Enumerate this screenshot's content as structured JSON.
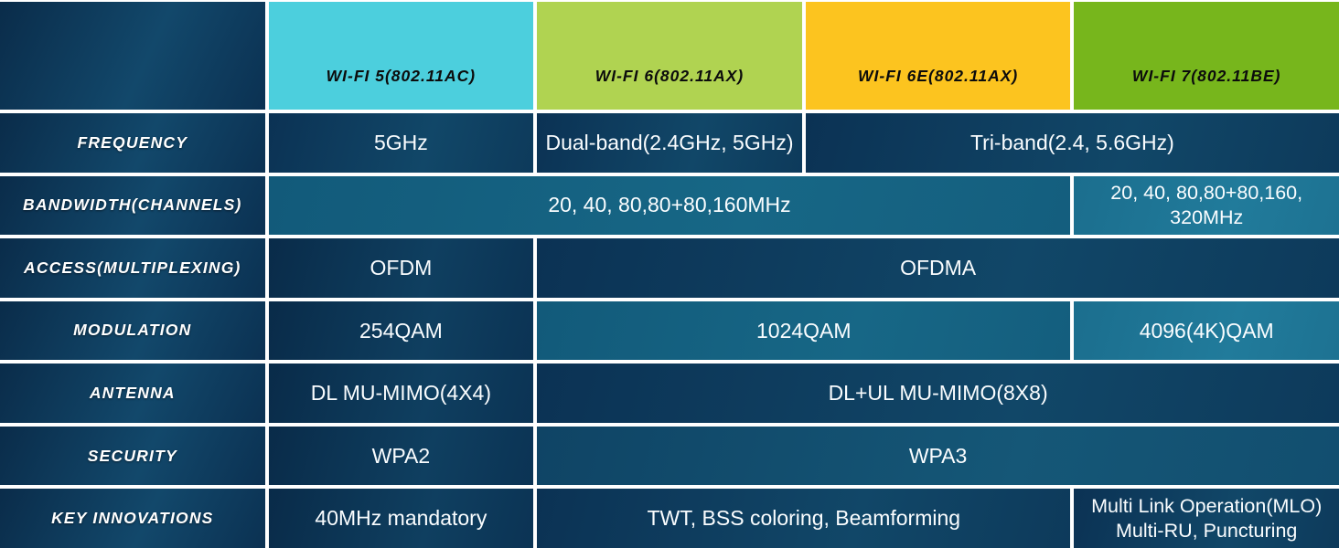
{
  "title": "Wi-Fi generations comparison table",
  "colors": {
    "wifi5_header": "#4ccfdd",
    "wifi6_header": "#b0d351",
    "wifi6e_header": "#fcc41f",
    "wifi7_header": "#77b61c",
    "navy_cell": "#0e3c5b",
    "teal_cell": "#14607f",
    "teal_light_cell": "#1e7392",
    "blue_cell": "#124e6f",
    "grid_line": "#ffffff",
    "header_text": "#0c0c0c",
    "cell_text": "#fafdff"
  },
  "table": {
    "corner_label": "",
    "columns": [
      {
        "id": "wifi5",
        "label": "WI-FI 5(802.11AC)",
        "tone_key": "wifi5_header"
      },
      {
        "id": "wifi6",
        "label": "WI-FI 6(802.11AX)",
        "tone_key": "wifi6_header"
      },
      {
        "id": "wifi6e",
        "label": "WI-FI 6E(802.11AX)",
        "tone_key": "wifi6e_header"
      },
      {
        "id": "wifi7",
        "label": "WI-FI 7(802.11BE)",
        "tone_key": "wifi7_header"
      }
    ],
    "rows": [
      {
        "label": "FREQUENCY",
        "cells": [
          {
            "text": "5GHz",
            "span": 1,
            "tone": "navy"
          },
          {
            "text": "Dual-band(2.4GHz, 5GHz)",
            "span": 1,
            "tone": "navy"
          },
          {
            "text": "Tri-band(2.4, 5.6GHz)",
            "span": 2,
            "tone": "navy"
          }
        ]
      },
      {
        "label": "BANDWIDTH(CHANNELS)",
        "cells": [
          {
            "text": "20, 40, 80,80+80,160MHz",
            "span": 3,
            "tone": "teal"
          },
          {
            "text": "20, 40, 80,80+80,160, 320MHz",
            "span": 1,
            "tone": "teal-light",
            "small": true
          }
        ]
      },
      {
        "label": "ACCESS(MULTIPLEXING)",
        "cells": [
          {
            "text": "OFDM",
            "span": 1,
            "tone": "navy-deep"
          },
          {
            "text": "OFDMA",
            "span": 3,
            "tone": "navy"
          }
        ]
      },
      {
        "label": "MODULATION",
        "cells": [
          {
            "text": "254QAM",
            "span": 1,
            "tone": "navy-deep"
          },
          {
            "text": "1024QAM",
            "span": 2,
            "tone": "teal"
          },
          {
            "text": "4096(4K)QAM",
            "span": 1,
            "tone": "teal-light"
          }
        ]
      },
      {
        "label": "ANTENNA",
        "cells": [
          {
            "text": "DL MU-MIMO(4X4)",
            "span": 1,
            "tone": "navy-deep"
          },
          {
            "text": "DL+UL MU-MIMO(8X8)",
            "span": 3,
            "tone": "navy"
          }
        ]
      },
      {
        "label": "SECURITY",
        "cells": [
          {
            "text": "WPA2",
            "span": 1,
            "tone": "navy-deep"
          },
          {
            "text": "WPA3",
            "span": 3,
            "tone": "blue"
          }
        ]
      },
      {
        "label": "KEY INNOVATIONS",
        "cells": [
          {
            "text": "40MHz mandatory",
            "span": 1,
            "tone": "navy-deep"
          },
          {
            "text": "TWT, BSS coloring, Beamforming",
            "span": 2,
            "tone": "navy"
          },
          {
            "text": "Multi Link Operation(MLO) Multi-RU, Puncturing",
            "span": 1,
            "tone": "navy",
            "small": true
          }
        ]
      }
    ]
  }
}
